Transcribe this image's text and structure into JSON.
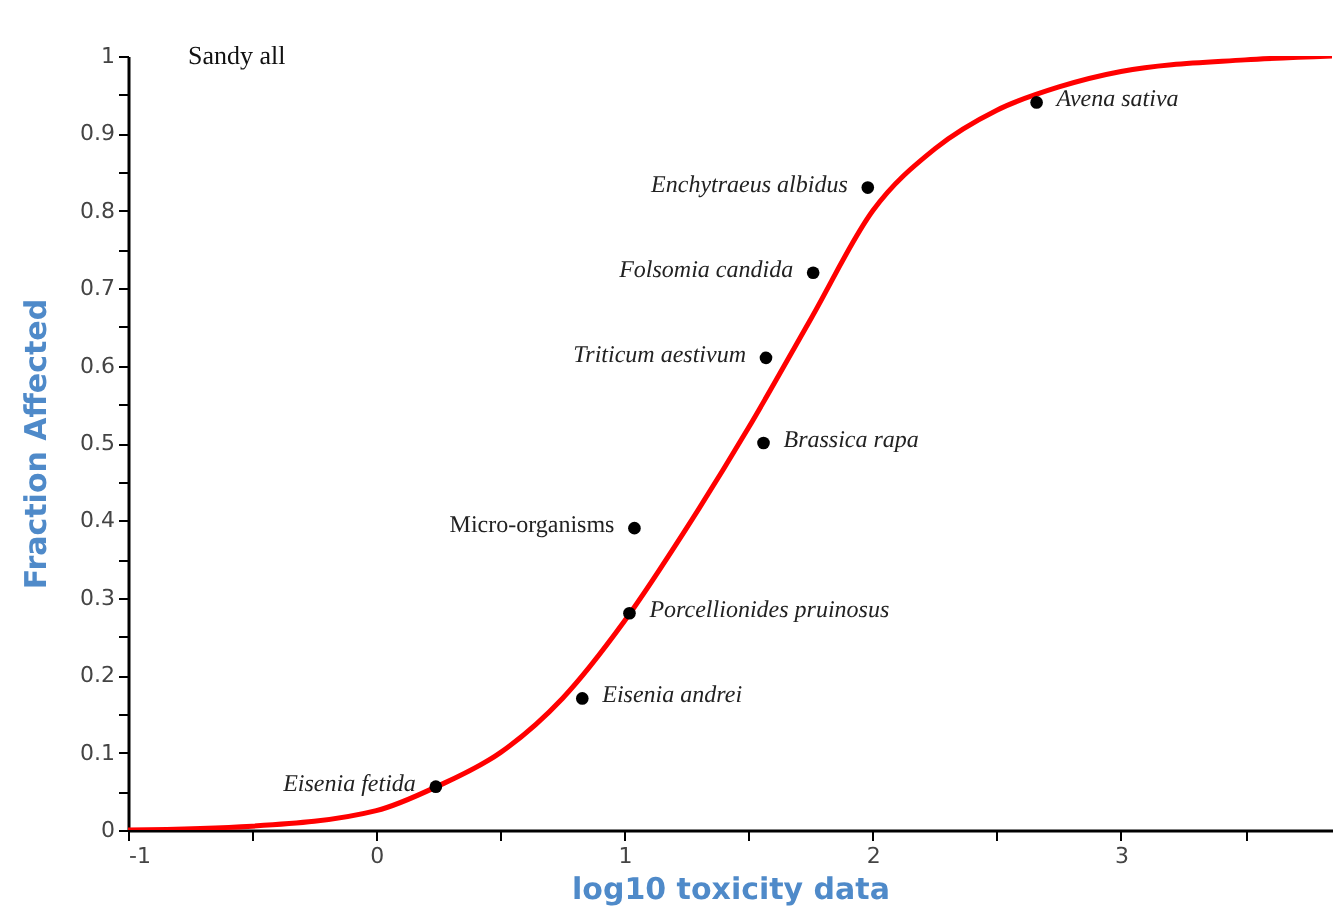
{
  "chart_data": {
    "type": "scatter",
    "xlabel": "log10 toxicity data",
    "ylabel": "Fraction Affected",
    "xlim": [
      -1,
      3.85
    ],
    "ylim": [
      0,
      1
    ],
    "xticks": [
      -1,
      {
        "value": -0.5,
        "label": null
      },
      0,
      {
        "value": 0.5,
        "label": null
      },
      1,
      {
        "value": 1.5,
        "label": null
      },
      2,
      {
        "value": 2.5,
        "label": null
      },
      3,
      {
        "value": 3.5,
        "label": null
      }
    ],
    "yticks": [
      0,
      {
        "value": 0.05,
        "label": null
      },
      0.1,
      {
        "value": 0.15,
        "label": null
      },
      0.2,
      {
        "value": 0.25,
        "label": null
      },
      0.3,
      {
        "value": 0.35,
        "label": null
      },
      0.4,
      {
        "value": 0.45,
        "label": null
      },
      0.5,
      {
        "value": 0.55,
        "label": null
      },
      0.6,
      {
        "value": 0.65,
        "label": null
      },
      0.7,
      {
        "value": 0.75,
        "label": null
      },
      0.8,
      {
        "value": 0.85,
        "label": null
      },
      0.9,
      {
        "value": 0.95,
        "label": null
      },
      1
    ],
    "grid": false,
    "series": [
      {
        "type": "line",
        "color": "#ff0000",
        "marker": "none",
        "line_style": "solid",
        "x": [
          -1,
          -0.5,
          0,
          0.25,
          0.5,
          0.75,
          1,
          1.25,
          1.5,
          1.75,
          2,
          2.25,
          2.5,
          2.75,
          3,
          3.5,
          3.85
        ],
        "values": [
          0,
          0.005,
          0.025,
          0.057,
          0.1,
          0.17,
          0.27,
          0.39,
          0.52,
          0.66,
          0.8,
          0.88,
          0.93,
          0.96,
          0.98,
          0.995,
          1.0
        ]
      },
      {
        "color": "#000000",
        "marker": "circle",
        "x": [
          0.24,
          0.83,
          1.02,
          1.04,
          1.56,
          1.57,
          1.76,
          1.98,
          2.66
        ],
        "values": [
          0.056,
          0.17,
          0.28,
          0.39,
          0.5,
          0.61,
          0.72,
          0.83,
          0.94
        ]
      }
    ],
    "annotations": [
      "Sandy all",
      {
        "text": "Eisenia fetida",
        "x": 0.24,
        "y": 0.056
      },
      {
        "text": "Eisenia andrei",
        "x": 0.83,
        "y": 0.17
      },
      {
        "text": "Porcellionides pruinosus",
        "x": 1.02,
        "y": 0.28
      },
      {
        "text": "Micro-organisms",
        "x": 1.04,
        "y": 0.39
      },
      {
        "text": "Brassica rapa",
        "x": 1.56,
        "y": 0.5
      },
      {
        "text": "Triticum aestivum",
        "x": 1.57,
        "y": 0.61
      },
      {
        "text": "Folsomia candida",
        "x": 1.76,
        "y": 0.72
      },
      {
        "text": "Enchytraeus albidus",
        "x": 1.98,
        "y": 0.83
      },
      {
        "text": "Avena sativa",
        "x": 2.66,
        "y": 0.94
      }
    ]
  }
}
